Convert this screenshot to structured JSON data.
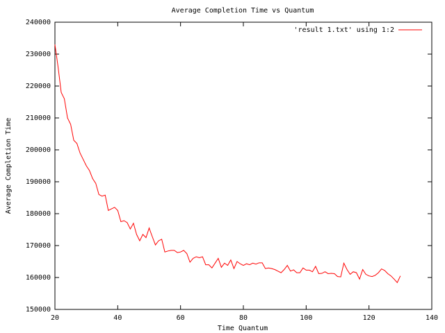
{
  "chart_data": {
    "type": "line",
    "title": "Average Completion Time vs Quantum",
    "x_label": "Time Quantum",
    "y_label": "Average Completion Time",
    "legend": "top-right",
    "xlim": [
      20,
      140
    ],
    "xticks": [
      20,
      40,
      60,
      80,
      100,
      120,
      140
    ],
    "ylim": [
      150000,
      240000
    ],
    "yticks": [
      150000,
      160000,
      170000,
      180000,
      190000,
      200000,
      210000,
      220000,
      230000,
      240000
    ],
    "x": [
      20,
      21,
      22,
      23,
      24,
      25,
      26,
      27,
      28,
      29,
      30,
      31,
      32,
      33,
      34,
      35,
      36,
      37,
      38,
      39,
      40,
      41,
      42,
      43,
      44,
      45,
      46,
      47,
      48,
      49,
      50,
      51,
      52,
      53,
      54,
      55,
      56,
      57,
      58,
      59,
      60,
      61,
      62,
      63,
      64,
      65,
      66,
      67,
      68,
      69,
      70,
      71,
      72,
      73,
      74,
      75,
      76,
      77,
      78,
      79,
      80,
      81,
      82,
      83,
      84,
      85,
      86,
      87,
      88,
      89,
      90,
      91,
      92,
      93,
      94,
      95,
      96,
      97,
      98,
      99,
      100,
      101,
      102,
      103,
      104,
      105,
      106,
      107,
      108,
      109,
      110,
      111,
      112,
      113,
      114,
      115,
      116,
      117,
      118,
      119,
      120,
      121,
      122,
      123,
      124,
      125,
      126,
      127,
      128,
      129,
      130
    ],
    "series": [
      {
        "name": "'result 1.txt' using 1:2",
        "color": "#ff0000",
        "values": [
          233000,
          226000,
          218000,
          216000,
          210000,
          208000,
          203000,
          202000,
          199000,
          197000,
          195000,
          193500,
          191000,
          189500,
          186000,
          185500,
          185800,
          181000,
          181500,
          182000,
          181000,
          177500,
          177800,
          177200,
          175200,
          177000,
          173500,
          171500,
          173500,
          172500,
          175500,
          172800,
          170200,
          171500,
          172000,
          168000,
          168300,
          168500,
          168500,
          167800,
          168000,
          168500,
          167500,
          164800,
          166000,
          166500,
          166200,
          166500,
          164000,
          164000,
          163000,
          164500,
          166000,
          163200,
          164500,
          163800,
          165500,
          162800,
          165000,
          164300,
          163800,
          164300,
          164000,
          164500,
          164200,
          164600,
          164600,
          162800,
          163000,
          162800,
          162500,
          162000,
          161500,
          162500,
          163800,
          162000,
          162400,
          161500,
          161500,
          163000,
          162300,
          162300,
          161800,
          163500,
          161200,
          161300,
          161800,
          161200,
          161300,
          161200,
          160300,
          160200,
          164500,
          162500,
          161000,
          161800,
          161500,
          159500,
          162500,
          161000,
          160500,
          160300,
          160700,
          161500,
          162700,
          162200,
          161200,
          160500,
          159500,
          158400,
          160500
        ]
      }
    ]
  }
}
